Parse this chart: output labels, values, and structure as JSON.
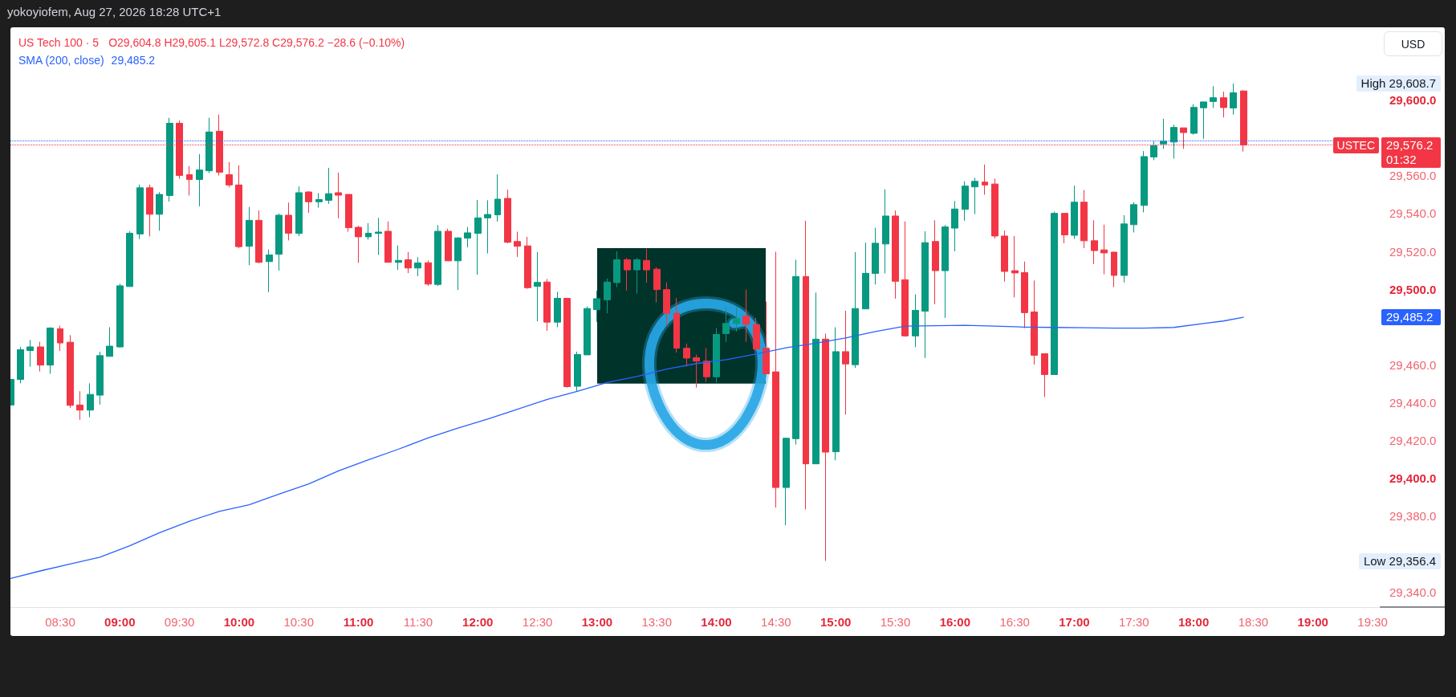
{
  "chart_data": {
    "type": "candlestick",
    "title": "US Tech 100 · 5",
    "x": [
      8.0833,
      8.1667,
      8.25,
      8.3333,
      8.4167,
      8.5,
      8.5833,
      8.6667,
      8.75,
      8.8333,
      8.9167,
      9,
      9.0833,
      9.1667,
      9.25,
      9.3333,
      9.4167,
      9.5,
      9.5833,
      9.6667,
      9.75,
      9.8333,
      9.9167,
      10,
      10.0833,
      10.1667,
      10.25,
      10.3333,
      10.4167,
      10.5,
      10.5833,
      10.6667,
      10.75,
      10.8333,
      10.9167,
      11,
      11.0833,
      11.1667,
      11.25,
      11.3333,
      11.4167,
      11.5,
      11.5833,
      11.6667,
      11.75,
      11.8333,
      11.9167,
      12,
      12.0833,
      12.1667,
      12.25,
      12.3333,
      12.4167,
      12.5,
      12.5833,
      12.6667,
      12.75,
      12.8333,
      12.9167,
      13,
      13.0833,
      13.1667,
      13.25,
      13.3333,
      13.4167,
      13.5,
      13.5833,
      13.6667,
      13.75,
      13.8333,
      13.9167,
      14,
      14.0833,
      14.1667,
      14.25,
      14.3333,
      14.4167,
      14.5,
      14.5833,
      14.6667,
      14.75,
      14.8333,
      14.9167,
      15,
      15.0833,
      15.1667,
      15.25,
      15.3333,
      15.4167,
      15.5,
      15.5833,
      15.6667,
      15.75,
      15.8333,
      15.9167,
      16,
      16.0833,
      16.1667,
      16.25,
      16.3333,
      16.4167,
      16.5,
      16.5833,
      16.6667,
      16.75,
      16.8333,
      16.9167,
      17,
      17.0833,
      17.1667,
      17.25,
      17.3333,
      17.4167,
      17.5,
      17.5833,
      17.6667,
      17.75,
      17.8333,
      17.9167,
      18,
      18.0833,
      18.1667,
      18.25,
      18.3333,
      18.4167
    ],
    "ohlc": [
      [
        29438.8,
        29453.4,
        29438.1,
        29452.3
      ],
      [
        29452.3,
        29469.5,
        29450.3,
        29468.0
      ],
      [
        29467.6,
        29473.2,
        29459.0,
        29469.5
      ],
      [
        29469.5,
        29472.2,
        29456.5,
        29459.9
      ],
      [
        29459.9,
        29479.9,
        29455.3,
        29479.5
      ],
      [
        29479.1,
        29480.7,
        29467.4,
        29471.6
      ],
      [
        29472.0,
        29475.7,
        29437.3,
        29438.6
      ],
      [
        29438.8,
        29446.1,
        29431.0,
        29436.1
      ],
      [
        29436.1,
        29450.3,
        29432.3,
        29444.4
      ],
      [
        29444.0,
        29467.0,
        29439.0,
        29464.9
      ],
      [
        29464.5,
        29479.9,
        29464.5,
        29469.9
      ],
      [
        29469.5,
        29502.9,
        29469.1,
        29501.8
      ],
      [
        29501.4,
        29530.7,
        29501.4,
        29529.6
      ],
      [
        29529.2,
        29555.3,
        29526.5,
        29553.6
      ],
      [
        29553.6,
        29555.3,
        29527.9,
        29539.6
      ],
      [
        29539.6,
        29551.3,
        29530.9,
        29550.1
      ],
      [
        29549.5,
        29590.6,
        29546.3,
        29587.7
      ],
      [
        29587.7,
        29589.1,
        29558.4,
        29560.1
      ],
      [
        29560.5,
        29565.1,
        29549.5,
        29558.0
      ],
      [
        29558.0,
        29571.4,
        29543.8,
        29563.0
      ],
      [
        29562.6,
        29590.6,
        29561.4,
        29583.1
      ],
      [
        29583.5,
        29592.3,
        29560.1,
        29561.8
      ],
      [
        29560.5,
        29567.2,
        29553.8,
        29555.1
      ],
      [
        29555.1,
        29565.5,
        29521.7,
        29522.5
      ],
      [
        29522.7,
        29543.5,
        29512.7,
        29536.4
      ],
      [
        29536.4,
        29541.6,
        29513.7,
        29514.2
      ],
      [
        29514.6,
        29521.0,
        29498.4,
        29518.1
      ],
      [
        29518.5,
        29540.0,
        29509.8,
        29539.1
      ],
      [
        29539.1,
        29545.8,
        29525.8,
        29529.6
      ],
      [
        29529.5,
        29554.3,
        29528.1,
        29551.0
      ],
      [
        29551.4,
        29551.8,
        29540.4,
        29546.2
      ],
      [
        29546.2,
        29550.8,
        29543.1,
        29547.4
      ],
      [
        29547.0,
        29564.1,
        29545.1,
        29550.5
      ],
      [
        29551.0,
        29561.6,
        29537.5,
        29549.7
      ],
      [
        29550.1,
        29550.1,
        29530.4,
        29532.5
      ],
      [
        29532.7,
        29533.5,
        29513.9,
        29527.7
      ],
      [
        29527.7,
        29534.9,
        29526.2,
        29529.6
      ],
      [
        29529.5,
        29537.7,
        29518.1,
        29530.2
      ],
      [
        29530.6,
        29535.8,
        29514.2,
        29514.2
      ],
      [
        29514.2,
        29523.1,
        29510.2,
        29515.2
      ],
      [
        29515.6,
        29519.6,
        29508.5,
        29511.2
      ],
      [
        29511.2,
        29516.9,
        29506.9,
        29513.9
      ],
      [
        29514.0,
        29515.2,
        29501.7,
        29502.7
      ],
      [
        29502.5,
        29533.9,
        29501.7,
        29530.6
      ],
      [
        29530.6,
        29532.0,
        29515.0,
        29515.0
      ],
      [
        29515.0,
        29527.5,
        29499.6,
        29527.1
      ],
      [
        29527.0,
        29532.9,
        29522.1,
        29529.8
      ],
      [
        29529.5,
        29547.2,
        29507.7,
        29537.7
      ],
      [
        29537.7,
        29547.0,
        29518.9,
        29539.5
      ],
      [
        29539.3,
        29560.7,
        29535.8,
        29547.6
      ],
      [
        29548.0,
        29552.6,
        29524.3,
        29524.8
      ],
      [
        29525.2,
        29530.4,
        29517.1,
        29522.7
      ],
      [
        29522.9,
        29527.7,
        29500.2,
        29500.8
      ],
      [
        29501.5,
        29519.6,
        29483.0,
        29503.6
      ],
      [
        29503.8,
        29505.4,
        29478.0,
        29482.6
      ],
      [
        29482.6,
        29498.6,
        29479.9,
        29495.2
      ],
      [
        29495.2,
        29495.2,
        29448.0,
        29448.5
      ],
      [
        29448.7,
        29467.0,
        29446.0,
        29465.5
      ],
      [
        29465.3,
        29490.9,
        29465.3,
        29489.8
      ],
      [
        29489.2,
        29499.2,
        29482.6,
        29495.0
      ],
      [
        29494.4,
        29505.6,
        29487.3,
        29503.8
      ],
      [
        29503.5,
        29520.0,
        29501.1,
        29515.6
      ],
      [
        29515.6,
        29516.5,
        29499.2,
        29510.2
      ],
      [
        29510.2,
        29516.5,
        29497.7,
        29515.6
      ],
      [
        29515.2,
        29521.4,
        29503.5,
        29510.2
      ],
      [
        29510.6,
        29511.7,
        29493.0,
        29499.8
      ],
      [
        29499.8,
        29503.6,
        29480.9,
        29487.3
      ],
      [
        29487.3,
        29495.4,
        29466.5,
        29468.8
      ],
      [
        29468.8,
        29471.3,
        29459.1,
        29463.6
      ],
      [
        29463.8,
        29465.5,
        29448.0,
        29462.0
      ],
      [
        29462.0,
        29469.0,
        29451.0,
        29453.7
      ],
      [
        29453.7,
        29479.4,
        29450.7,
        29476.1
      ],
      [
        29476.5,
        29490.5,
        29472.2,
        29481.9
      ],
      [
        29481.9,
        29490.5,
        29477.6,
        29484.6
      ],
      [
        29485.7,
        29499.8,
        29472.2,
        29481.5
      ],
      [
        29481.3,
        29484.8,
        29467.4,
        29468.4
      ],
      [
        29468.8,
        29493.4,
        29454.9,
        29455.3
      ],
      [
        29456.3,
        29519.8,
        29384.6,
        29395.2
      ],
      [
        29395.2,
        29421.6,
        29375.3,
        29421.2
      ],
      [
        29421.0,
        29515.6,
        29417.9,
        29506.7
      ],
      [
        29506.7,
        29536.2,
        29383.6,
        29407.7
      ],
      [
        29407.7,
        29498.2,
        29407.7,
        29473.6
      ],
      [
        29473.6,
        29476.5,
        29356.4,
        29413.9
      ],
      [
        29414.1,
        29479.9,
        29409.6,
        29467.0
      ],
      [
        29467.0,
        29488.6,
        29433.7,
        29460.5
      ],
      [
        29460.1,
        29519.6,
        29458.4,
        29489.8
      ],
      [
        29489.6,
        29524.6,
        29489.6,
        29508.4
      ],
      [
        29508.3,
        29532.5,
        29502.5,
        29524.3
      ],
      [
        29523.9,
        29552.8,
        29508.3,
        29538.7
      ],
      [
        29538.7,
        29541.6,
        29495.0,
        29504.2
      ],
      [
        29505.0,
        29535.8,
        29474.9,
        29475.3
      ],
      [
        29475.3,
        29497.3,
        29469.3,
        29488.8
      ],
      [
        29488.4,
        29530.6,
        29463.6,
        29524.6
      ],
      [
        29525.2,
        29536.4,
        29492.1,
        29509.8
      ],
      [
        29509.8,
        29533.9,
        29484.8,
        29532.9
      ],
      [
        29532.3,
        29546.6,
        29520.0,
        29542.4
      ],
      [
        29542.2,
        29557.0,
        29536.2,
        29554.5
      ],
      [
        29554.1,
        29558.9,
        29539.7,
        29557.0
      ],
      [
        29556.6,
        29565.9,
        29549.9,
        29555.1
      ],
      [
        29555.6,
        29558.4,
        29526.8,
        29528.1
      ],
      [
        29528.1,
        29531.0,
        29504.0,
        29509.4
      ],
      [
        29509.8,
        29528.1,
        29495.7,
        29508.6
      ],
      [
        29508.8,
        29514.6,
        29479.4,
        29487.6
      ],
      [
        29488.0,
        29504.6,
        29460.1,
        29465.1
      ],
      [
        29465.9,
        29465.9,
        29443.0,
        29454.9
      ],
      [
        29454.9,
        29541.0,
        29454.9,
        29540.1
      ],
      [
        29540.1,
        29540.1,
        29524.3,
        29528.7
      ],
      [
        29528.5,
        29554.7,
        29526.6,
        29546.0
      ],
      [
        29546.0,
        29552.4,
        29521.7,
        29525.6
      ],
      [
        29525.6,
        29536.4,
        29513.3,
        29520.4
      ],
      [
        29520.8,
        29534.1,
        29507.9,
        29519.2
      ],
      [
        29519.6,
        29519.6,
        29501.1,
        29507.3
      ],
      [
        29507.3,
        29539.1,
        29503.6,
        29534.5
      ],
      [
        29534.1,
        29546.0,
        29530.0,
        29544.7
      ],
      [
        29544.3,
        29573.0,
        29540.6,
        29570.1
      ],
      [
        29569.9,
        29578.2,
        29568.2,
        29575.9
      ],
      [
        29576.8,
        29590.1,
        29574.2,
        29578.2
      ],
      [
        29577.8,
        29586.9,
        29569.0,
        29585.5
      ],
      [
        29585.3,
        29585.3,
        29574.2,
        29582.8
      ],
      [
        29582.4,
        29597.8,
        29581.7,
        29596.1
      ],
      [
        29595.9,
        29599.0,
        29579.5,
        29599.0
      ],
      [
        29599.2,
        29607.3,
        29595.8,
        29601.2
      ],
      [
        29601.2,
        29604.4,
        29590.8,
        29596.0
      ],
      [
        29595.8,
        29608.7,
        29592.3,
        29603.8
      ],
      [
        29604.8,
        29605.1,
        29572.8,
        29576.2
      ]
    ],
    "colors": [
      "#089981",
      "#089981",
      "#089981",
      "#f23645",
      "#089981",
      "#f23645",
      "#f23645",
      "#f23645",
      "#089981",
      "#089981",
      "#089981",
      "#089981",
      "#089981",
      "#089981",
      "#f23645",
      "#089981",
      "#089981",
      "#f23645",
      "#f23645",
      "#089981",
      "#089981",
      "#f23645",
      "#f23645",
      "#f23645",
      "#089981",
      "#f23645",
      "#089981",
      "#089981",
      "#f23645",
      "#089981",
      "#f23645",
      "#089981",
      "#089981",
      "#f23645",
      "#f23645",
      "#f23645",
      "#089981",
      "#089981",
      "#f23645",
      "#089981",
      "#f23645",
      "#089981",
      "#f23645",
      "#089981",
      "#f23645",
      "#089981",
      "#089981",
      "#089981",
      "#089981",
      "#089981",
      "#f23645",
      "#f23645",
      "#f23645",
      "#089981",
      "#f23645",
      "#089981",
      "#f23645",
      "#089981",
      "#089981",
      "#089981",
      "#089981",
      "#089981",
      "#f23645",
      "#089981",
      "#f23645",
      "#f23645",
      "#f23645",
      "#f23645",
      "#f23645",
      "#f23645",
      "#f23645",
      "#089981",
      "#089981",
      "#089981",
      "#f23645",
      "#f23645",
      "#f23645",
      "#f23645",
      "#089981",
      "#089981",
      "#f23645",
      "#089981",
      "#f23645",
      "#089981",
      "#f23645",
      "#089981",
      "#089981",
      "#089981",
      "#089981",
      "#f23645",
      "#f23645",
      "#089981",
      "#089981",
      "#f23645",
      "#089981",
      "#089981",
      "#089981",
      "#089981",
      "#f23645",
      "#f23645",
      "#f23645",
      "#f23645",
      "#f23645",
      "#f23645",
      "#f23645",
      "#089981",
      "#f23645",
      "#089981",
      "#f23645",
      "#f23645",
      "#f23645",
      "#f23645",
      "#089981",
      "#089981",
      "#089981",
      "#089981",
      "#089981",
      "#089981",
      "#f23645",
      "#089981",
      "#089981",
      "#089981",
      "#f23645",
      "#089981",
      "#f23645"
    ],
    "series": [
      {
        "type": "line",
        "name": "SMA (200, close)",
        "color": "#2962ff",
        "x": [
          8.0833,
          8.3333,
          8.5833,
          8.8333,
          9.0833,
          9.3333,
          9.5833,
          9.8333,
          10.0833,
          10.3333,
          10.5833,
          10.8333,
          11.0833,
          11.3333,
          11.5833,
          11.8333,
          12.0833,
          12.3333,
          12.5833,
          12.8333,
          13.0833,
          13.3333,
          13.5833,
          13.8333,
          14.0833,
          14.3333,
          14.5833,
          14.8333,
          15.0833,
          15.3333,
          15.5833,
          15.8333,
          16.0833,
          16.3333,
          16.5833,
          16.8333,
          17.0833,
          17.3333,
          17.5833,
          17.8333,
          18.0833,
          18.25,
          18.4167
        ],
        "values": [
          29347.1,
          29351.1,
          29354.8,
          29358.4,
          29364.4,
          29371.3,
          29377.4,
          29382.6,
          29386.1,
          29391.7,
          29397.1,
          29404.0,
          29409.8,
          29415.4,
          29421.4,
          29426.6,
          29431.4,
          29436.6,
          29441.8,
          29446.0,
          29450.7,
          29453.9,
          29457.8,
          29460.7,
          29462.8,
          29465.7,
          29469.0,
          29471.5,
          29474.2,
          29477.6,
          29480.5,
          29480.7,
          29480.9,
          29480.5,
          29480.0,
          29479.8,
          29479.6,
          29479.4,
          29479.4,
          29479.8,
          29481.9,
          29483.2,
          29485.2
        ]
      }
    ],
    "xlim": [
      8.083,
      19.56
    ],
    "xticks": [
      {
        "value": 8.5,
        "label": "08:30"
      },
      {
        "value": 9,
        "label": "09:00"
      },
      {
        "value": 9.5,
        "label": "09:30"
      },
      {
        "value": 10,
        "label": "10:00"
      },
      {
        "value": 10.5,
        "label": "10:30"
      },
      {
        "value": 11,
        "label": "11:00"
      },
      {
        "value": 11.5,
        "label": "11:30"
      },
      {
        "value": 12,
        "label": "12:00"
      },
      {
        "value": 12.5,
        "label": "12:30"
      },
      {
        "value": 13,
        "label": "13:00"
      },
      {
        "value": 13.5,
        "label": "13:30"
      },
      {
        "value": 14,
        "label": "14:00"
      },
      {
        "value": 14.5,
        "label": "14:30"
      },
      {
        "value": 15,
        "label": "15:00"
      },
      {
        "value": 15.5,
        "label": "15:30"
      },
      {
        "value": 16,
        "label": "16:00"
      },
      {
        "value": 16.5,
        "label": "16:30"
      },
      {
        "value": 17,
        "label": "17:00"
      },
      {
        "value": 17.5,
        "label": "17:30"
      },
      {
        "value": 18,
        "label": "18:00"
      },
      {
        "value": 18.5,
        "label": "18:30"
      },
      {
        "value": 19,
        "label": "19:00"
      },
      {
        "value": 19.5,
        "label": "19:30"
      }
    ],
    "ylim": [
      29332,
      29638
    ],
    "yticks": [
      {
        "value": 29340,
        "label": "29,340.0"
      },
      {
        "value": 29380,
        "label": "29,380.0"
      },
      {
        "value": 29400,
        "label": "29,400.0"
      },
      {
        "value": 29420,
        "label": "29,420.0"
      },
      {
        "value": 29440,
        "label": "29,440.0"
      },
      {
        "value": 29460,
        "label": "29,460.0"
      },
      {
        "value": 29500,
        "label": "29,500.0"
      },
      {
        "value": 29520,
        "label": "29,520.0"
      },
      {
        "value": 29540,
        "label": "29,540.0"
      },
      {
        "value": 29560,
        "label": "29,560.0"
      },
      {
        "value": 29600,
        "label": "29,600.0"
      }
    ],
    "ref_lines": [
      {
        "axis": "y",
        "value": 29578.6,
        "color": "#2962ff",
        "line_style": "dotted"
      },
      {
        "axis": "y",
        "value": 29576.2,
        "label": "USTEC",
        "color": "#f23645",
        "line_style": "dotted"
      }
    ],
    "annotations": [
      "yokoyiofem, Aug 27, 2026 18:28 UTC+1",
      "O29,604.8 H29,605.1 L29,572.8 C29,576.2 −28.6 (−0.10%)",
      "USD",
      "High 29,608.7",
      "29,576.2\n01:32",
      "Low 29,356.4",
      "29,485.2",
      "29,485.2"
    ],
    "legend": "top left"
  }
}
